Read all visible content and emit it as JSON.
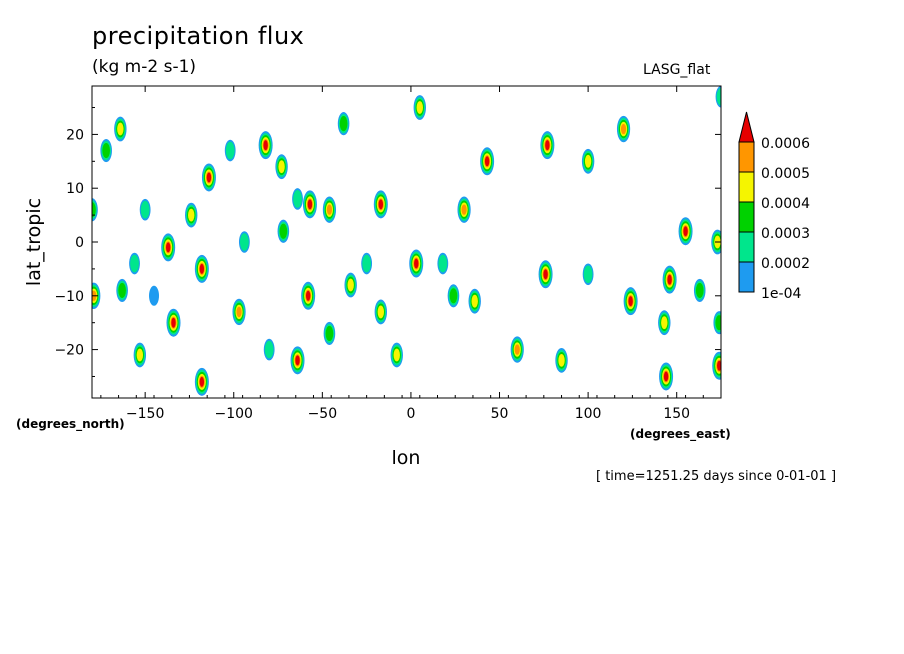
{
  "header": {
    "title": "precipitation flux",
    "units": "(kg m-2 s-1)",
    "source": "LASG_flat"
  },
  "footer": {
    "time": "[ time=1251.25 days since 0-01-01 ]"
  },
  "chart_data": {
    "type": "heatmap",
    "title": "precipitation flux",
    "subtitle": "(kg m-2 s-1)",
    "xlabel": "lon",
    "ylabel": "lat_tropic",
    "x_unit_label": "(degrees_east)",
    "y_unit_label": "(degrees_north)",
    "xlim": [
      -180,
      175
    ],
    "ylim": [
      -29,
      29
    ],
    "x_ticks": [
      -150,
      -100,
      -50,
      0,
      50,
      100,
      150
    ],
    "x_tick_labels": [
      "−150",
      "−100",
      "−50",
      "0",
      "50",
      "100",
      "150"
    ],
    "y_ticks": [
      -20,
      -10,
      0,
      10,
      20
    ],
    "y_tick_labels": [
      "−20",
      "−10",
      "0",
      "10",
      "20"
    ],
    "colorbar": {
      "levels": [
        "1e-04",
        "0.0002",
        "0.0003",
        "0.0004",
        "0.0005",
        "0.0006"
      ],
      "colors": [
        "#1e9bf0",
        "#00e68c",
        "#00d200",
        "#f5f500",
        "#ff9600",
        "#e60000"
      ],
      "overflow_arrow": true
    },
    "cells": [
      {
        "lon": -180,
        "lat": 6,
        "level": 3
      },
      {
        "lon": -179,
        "lat": -10,
        "level": 5
      },
      {
        "lon": -172,
        "lat": 17,
        "level": 3
      },
      {
        "lon": -164,
        "lat": 21,
        "level": 4
      },
      {
        "lon": -163,
        "lat": -9,
        "level": 3
      },
      {
        "lon": -156,
        "lat": -4,
        "level": 2
      },
      {
        "lon": -153,
        "lat": -21,
        "level": 4
      },
      {
        "lon": -150,
        "lat": 6,
        "level": 2
      },
      {
        "lon": -145,
        "lat": -10,
        "level": 1
      },
      {
        "lon": -137,
        "lat": -1,
        "level": 6
      },
      {
        "lon": -134,
        "lat": -15,
        "level": 6
      },
      {
        "lon": -124,
        "lat": 5,
        "level": 4
      },
      {
        "lon": -118,
        "lat": -5,
        "level": 6
      },
      {
        "lon": -114,
        "lat": 12,
        "level": 6
      },
      {
        "lon": -118,
        "lat": -26,
        "level": 6
      },
      {
        "lon": -102,
        "lat": 17,
        "level": 2
      },
      {
        "lon": -97,
        "lat": -13,
        "level": 5
      },
      {
        "lon": -94,
        "lat": 0,
        "level": 2
      },
      {
        "lon": -82,
        "lat": 18,
        "level": 6
      },
      {
        "lon": -80,
        "lat": -20,
        "level": 2
      },
      {
        "lon": -73,
        "lat": 14,
        "level": 4
      },
      {
        "lon": -72,
        "lat": 2,
        "level": 3
      },
      {
        "lon": -64,
        "lat": -22,
        "level": 6
      },
      {
        "lon": -64,
        "lat": 8,
        "level": 2
      },
      {
        "lon": -57,
        "lat": 7,
        "level": 6
      },
      {
        "lon": -58,
        "lat": -10,
        "level": 6
      },
      {
        "lon": -46,
        "lat": 6,
        "level": 5
      },
      {
        "lon": -46,
        "lat": -17,
        "level": 3
      },
      {
        "lon": -38,
        "lat": 22,
        "level": 3
      },
      {
        "lon": -34,
        "lat": -8,
        "level": 4
      },
      {
        "lon": -25,
        "lat": -4,
        "level": 2
      },
      {
        "lon": -17,
        "lat": 7,
        "level": 6
      },
      {
        "lon": -17,
        "lat": -13,
        "level": 4
      },
      {
        "lon": -8,
        "lat": -21,
        "level": 4
      },
      {
        "lon": 3,
        "lat": -4,
        "level": 6
      },
      {
        "lon": 5,
        "lat": 25,
        "level": 4
      },
      {
        "lon": 18,
        "lat": -4,
        "level": 2
      },
      {
        "lon": 24,
        "lat": -10,
        "level": 3
      },
      {
        "lon": 30,
        "lat": 6,
        "level": 5
      },
      {
        "lon": 36,
        "lat": -11,
        "level": 4
      },
      {
        "lon": 43,
        "lat": 15,
        "level": 6
      },
      {
        "lon": 60,
        "lat": -20,
        "level": 5
      },
      {
        "lon": 76,
        "lat": -6,
        "level": 6
      },
      {
        "lon": 77,
        "lat": 18,
        "level": 6
      },
      {
        "lon": 85,
        "lat": -22,
        "level": 4
      },
      {
        "lon": 100,
        "lat": 15,
        "level": 4
      },
      {
        "lon": 100,
        "lat": -6,
        "level": 2
      },
      {
        "lon": 120,
        "lat": 21,
        "level": 5
      },
      {
        "lon": 124,
        "lat": -11,
        "level": 6
      },
      {
        "lon": 143,
        "lat": -15,
        "level": 4
      },
      {
        "lon": 146,
        "lat": -7,
        "level": 6
      },
      {
        "lon": 144,
        "lat": -25,
        "level": 6
      },
      {
        "lon": 155,
        "lat": 2,
        "level": 6
      },
      {
        "lon": 163,
        "lat": -9,
        "level": 3
      },
      {
        "lon": 173,
        "lat": 0,
        "level": 4
      },
      {
        "lon": 174,
        "lat": -23,
        "level": 6
      },
      {
        "lon": 174,
        "lat": -15,
        "level": 3
      },
      {
        "lon": 175,
        "lat": 27,
        "level": 2
      }
    ]
  }
}
